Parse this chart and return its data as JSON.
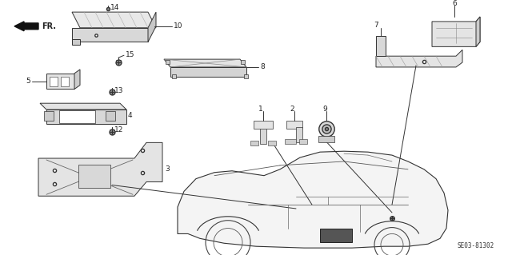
{
  "bg_color": "#ffffff",
  "fig_width": 6.4,
  "fig_height": 3.19,
  "diagram_code": "SE03-81302",
  "ec": "#333333",
  "lw": 0.7
}
